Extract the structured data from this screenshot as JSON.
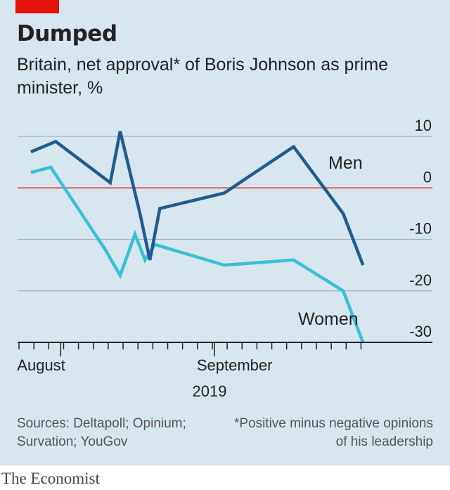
{
  "header": {
    "title": "Dumped",
    "subtitle": "Britain, net approval* of Boris Johnson as prime minister, %"
  },
  "footer": {
    "source": "Sources: Deltapoll; Opinium; Survation; YouGov",
    "footnote": "*Positive minus negative opinions of his leadership",
    "brand": "The Economist"
  },
  "colors": {
    "background": "#d8e6ef",
    "men": "#1f5c8f",
    "women": "#39c0d6",
    "zero_line": "#e85c5c",
    "accent": "#e3120b"
  },
  "chart_data": {
    "type": "line",
    "title": "Dumped",
    "subtitle": "Britain, net approval* of Boris Johnson as prime minister, %",
    "year_label": "2019",
    "x_tick_labels": [
      {
        "label": "August",
        "date": "2019-08-01"
      },
      {
        "label": "September",
        "date": "2019-09-01"
      }
    ],
    "xlim": [
      "2019-07-26",
      "2019-10-04"
    ],
    "ylim": [
      -30,
      10
    ],
    "y_ticks": [
      10,
      0,
      -10,
      -20,
      -30
    ],
    "grid": true,
    "series": [
      {
        "name": "Men",
        "points": [
          {
            "x": "2019-07-26",
            "y": 7
          },
          {
            "x": "2019-07-31",
            "y": 9
          },
          {
            "x": "2019-08-11",
            "y": 1
          },
          {
            "x": "2019-08-13",
            "y": 11
          },
          {
            "x": "2019-08-17",
            "y": -5
          },
          {
            "x": "2019-08-19",
            "y": -14
          },
          {
            "x": "2019-08-21",
            "y": -4
          },
          {
            "x": "2019-09-03",
            "y": -1
          },
          {
            "x": "2019-09-17",
            "y": 8
          },
          {
            "x": "2019-09-27",
            "y": -5
          },
          {
            "x": "2019-10-01",
            "y": -15
          }
        ]
      },
      {
        "name": "Women",
        "points": [
          {
            "x": "2019-07-26",
            "y": 3
          },
          {
            "x": "2019-07-30",
            "y": 4
          },
          {
            "x": "2019-08-10",
            "y": -12
          },
          {
            "x": "2019-08-13",
            "y": -17
          },
          {
            "x": "2019-08-16",
            "y": -9
          },
          {
            "x": "2019-08-18",
            "y": -14
          },
          {
            "x": "2019-08-20",
            "y": -11
          },
          {
            "x": "2019-09-03",
            "y": -15
          },
          {
            "x": "2019-09-17",
            "y": -14
          },
          {
            "x": "2019-09-27",
            "y": -20
          },
          {
            "x": "2019-10-01",
            "y": -30
          }
        ]
      }
    ]
  }
}
